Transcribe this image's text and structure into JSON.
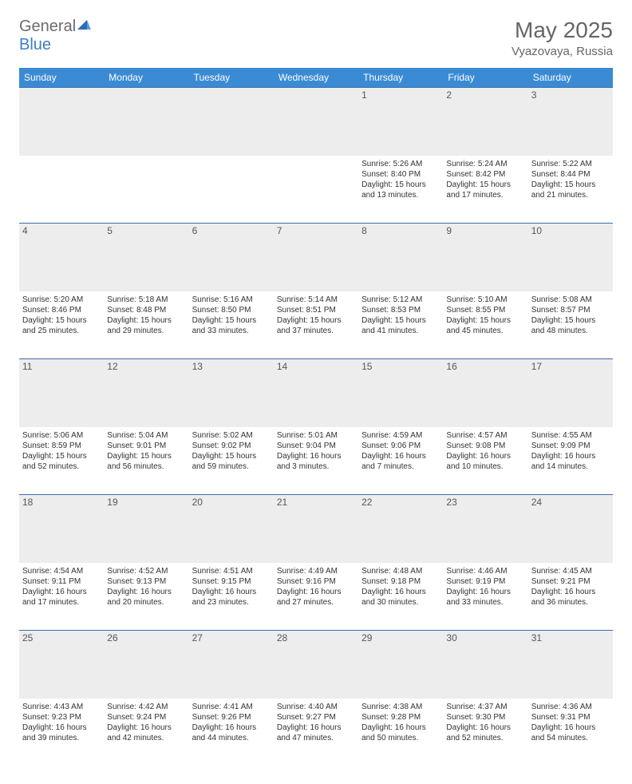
{
  "brand": {
    "part1": "General",
    "part2": "Blue"
  },
  "title": "May 2025",
  "location": "Vyazovaya, Russia",
  "colors": {
    "header_bg": "#3b8bd4",
    "header_text": "#ffffff",
    "daynum_bg": "#ededed",
    "border": "#3b6fa8",
    "text": "#333333",
    "title": "#666666"
  },
  "weekdays": [
    "Sunday",
    "Monday",
    "Tuesday",
    "Wednesday",
    "Thursday",
    "Friday",
    "Saturday"
  ],
  "weeks": [
    [
      null,
      null,
      null,
      null,
      {
        "n": "1",
        "sr": "5:26 AM",
        "ss": "8:40 PM",
        "dl": "15 hours and 13 minutes."
      },
      {
        "n": "2",
        "sr": "5:24 AM",
        "ss": "8:42 PM",
        "dl": "15 hours and 17 minutes."
      },
      {
        "n": "3",
        "sr": "5:22 AM",
        "ss": "8:44 PM",
        "dl": "15 hours and 21 minutes."
      }
    ],
    [
      {
        "n": "4",
        "sr": "5:20 AM",
        "ss": "8:46 PM",
        "dl": "15 hours and 25 minutes."
      },
      {
        "n": "5",
        "sr": "5:18 AM",
        "ss": "8:48 PM",
        "dl": "15 hours and 29 minutes."
      },
      {
        "n": "6",
        "sr": "5:16 AM",
        "ss": "8:50 PM",
        "dl": "15 hours and 33 minutes."
      },
      {
        "n": "7",
        "sr": "5:14 AM",
        "ss": "8:51 PM",
        "dl": "15 hours and 37 minutes."
      },
      {
        "n": "8",
        "sr": "5:12 AM",
        "ss": "8:53 PM",
        "dl": "15 hours and 41 minutes."
      },
      {
        "n": "9",
        "sr": "5:10 AM",
        "ss": "8:55 PM",
        "dl": "15 hours and 45 minutes."
      },
      {
        "n": "10",
        "sr": "5:08 AM",
        "ss": "8:57 PM",
        "dl": "15 hours and 48 minutes."
      }
    ],
    [
      {
        "n": "11",
        "sr": "5:06 AM",
        "ss": "8:59 PM",
        "dl": "15 hours and 52 minutes."
      },
      {
        "n": "12",
        "sr": "5:04 AM",
        "ss": "9:01 PM",
        "dl": "15 hours and 56 minutes."
      },
      {
        "n": "13",
        "sr": "5:02 AM",
        "ss": "9:02 PM",
        "dl": "15 hours and 59 minutes."
      },
      {
        "n": "14",
        "sr": "5:01 AM",
        "ss": "9:04 PM",
        "dl": "16 hours and 3 minutes."
      },
      {
        "n": "15",
        "sr": "4:59 AM",
        "ss": "9:06 PM",
        "dl": "16 hours and 7 minutes."
      },
      {
        "n": "16",
        "sr": "4:57 AM",
        "ss": "9:08 PM",
        "dl": "16 hours and 10 minutes."
      },
      {
        "n": "17",
        "sr": "4:55 AM",
        "ss": "9:09 PM",
        "dl": "16 hours and 14 minutes."
      }
    ],
    [
      {
        "n": "18",
        "sr": "4:54 AM",
        "ss": "9:11 PM",
        "dl": "16 hours and 17 minutes."
      },
      {
        "n": "19",
        "sr": "4:52 AM",
        "ss": "9:13 PM",
        "dl": "16 hours and 20 minutes."
      },
      {
        "n": "20",
        "sr": "4:51 AM",
        "ss": "9:15 PM",
        "dl": "16 hours and 23 minutes."
      },
      {
        "n": "21",
        "sr": "4:49 AM",
        "ss": "9:16 PM",
        "dl": "16 hours and 27 minutes."
      },
      {
        "n": "22",
        "sr": "4:48 AM",
        "ss": "9:18 PM",
        "dl": "16 hours and 30 minutes."
      },
      {
        "n": "23",
        "sr": "4:46 AM",
        "ss": "9:19 PM",
        "dl": "16 hours and 33 minutes."
      },
      {
        "n": "24",
        "sr": "4:45 AM",
        "ss": "9:21 PM",
        "dl": "16 hours and 36 minutes."
      }
    ],
    [
      {
        "n": "25",
        "sr": "4:43 AM",
        "ss": "9:23 PM",
        "dl": "16 hours and 39 minutes."
      },
      {
        "n": "26",
        "sr": "4:42 AM",
        "ss": "9:24 PM",
        "dl": "16 hours and 42 minutes."
      },
      {
        "n": "27",
        "sr": "4:41 AM",
        "ss": "9:26 PM",
        "dl": "16 hours and 44 minutes."
      },
      {
        "n": "28",
        "sr": "4:40 AM",
        "ss": "9:27 PM",
        "dl": "16 hours and 47 minutes."
      },
      {
        "n": "29",
        "sr": "4:38 AM",
        "ss": "9:28 PM",
        "dl": "16 hours and 50 minutes."
      },
      {
        "n": "30",
        "sr": "4:37 AM",
        "ss": "9:30 PM",
        "dl": "16 hours and 52 minutes."
      },
      {
        "n": "31",
        "sr": "4:36 AM",
        "ss": "9:31 PM",
        "dl": "16 hours and 54 minutes."
      }
    ]
  ],
  "labels": {
    "sunrise": "Sunrise: ",
    "sunset": "Sunset: ",
    "daylight": "Daylight: "
  }
}
